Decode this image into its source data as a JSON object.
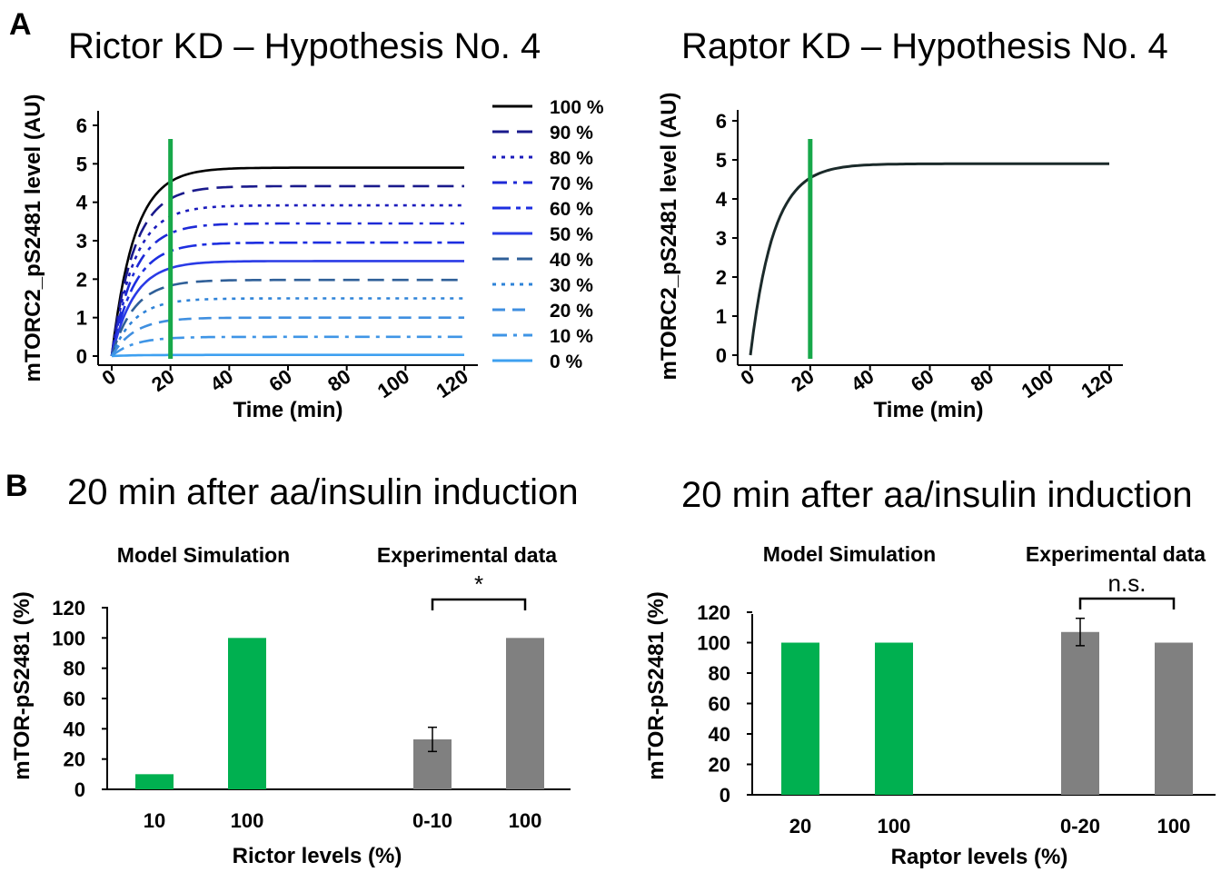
{
  "panel_labels": {
    "a": "A",
    "b": "B"
  },
  "chart_data": [
    {
      "type": "line",
      "title": "Rictor KD – Hypothesis No. 4",
      "xlabel": "Time (min)",
      "ylabel": "mTORC2_pS2481 level (AU)",
      "xticks": [
        "0",
        "20",
        "40",
        "60",
        "80",
        "100",
        "120"
      ],
      "yticks": [
        "0",
        "1",
        "2",
        "3",
        "4",
        "5",
        "6"
      ],
      "xlim": [
        0,
        120
      ],
      "ylim": [
        0,
        6
      ],
      "vline_x": 20,
      "vline_color": "#17a84a",
      "series": [
        {
          "name": "100 %",
          "plateau": 4.9,
          "color": "#000000",
          "dash": ""
        },
        {
          "name": "90 %",
          "plateau": 4.42,
          "color": "#1a1a8c",
          "dash": "18,9"
        },
        {
          "name": "80 %",
          "plateau": 3.92,
          "color": "#1c1cbc",
          "dash": "4,6"
        },
        {
          "name": "70 %",
          "plateau": 3.45,
          "color": "#1e2ad6",
          "dash": "16,7,4,7"
        },
        {
          "name": "60 %",
          "plateau": 2.95,
          "color": "#1d2ee0",
          "dash": "20,6,5,6"
        },
        {
          "name": "50 %",
          "plateau": 2.47,
          "color": "#2a3be6",
          "dash": ""
        },
        {
          "name": "40 %",
          "plateau": 1.98,
          "color": "#2f5f98",
          "dash": "18,9"
        },
        {
          "name": "30 %",
          "plateau": 1.5,
          "color": "#2f83d8",
          "dash": "4,6"
        },
        {
          "name": "20 %",
          "plateau": 1.0,
          "color": "#3f8fe0",
          "dash": "14,8"
        },
        {
          "name": "10 %",
          "plateau": 0.5,
          "color": "#3f95e6",
          "dash": "16,7,4,7"
        },
        {
          "name": "0 %",
          "plateau": 0.03,
          "color": "#3ea0f0",
          "dash": ""
        }
      ]
    },
    {
      "type": "line",
      "title": "Raptor KD – Hypothesis No. 4",
      "xlabel": "Time (min)",
      "ylabel": "mTORC2_pS2481 level (AU)",
      "xticks": [
        "0",
        "20",
        "40",
        "60",
        "80",
        "100",
        "120"
      ],
      "yticks": [
        "0",
        "1",
        "2",
        "3",
        "4",
        "5",
        "6"
      ],
      "xlim": [
        0,
        120
      ],
      "ylim": [
        0,
        6
      ],
      "vline_x": 20,
      "vline_color": "#17a84a",
      "series": [
        {
          "plateau": 4.9,
          "color": "#1b2a2a",
          "dash": ""
        }
      ]
    },
    {
      "type": "bar",
      "title": "20 min after aa/insulin induction",
      "xlabel": "Rictor levels (%)",
      "ylabel": "mTOR-pS2481 (%)",
      "group_labels": [
        "Model Simulation",
        "Experimental data"
      ],
      "yticks": [
        "0",
        "20",
        "40",
        "60",
        "80",
        "100",
        "120"
      ],
      "ylim": [
        0,
        120
      ],
      "categories": [
        "10",
        "100",
        "0-10",
        "100"
      ],
      "values": [
        10,
        100,
        33,
        100
      ],
      "errors": [
        0,
        0,
        8,
        0
      ],
      "colors": [
        "#00b050",
        "#00b050",
        "#808080",
        "#808080"
      ],
      "significance": {
        "label": "*",
        "between": [
          2,
          3
        ]
      }
    },
    {
      "type": "bar",
      "title": "20 min after aa/insulin induction",
      "xlabel": "Raptor levels (%)",
      "ylabel": "mTOR-pS2481 (%)",
      "group_labels": [
        "Model Simulation",
        "Experimental data"
      ],
      "yticks": [
        "0",
        "20",
        "40",
        "60",
        "80",
        "100",
        "120"
      ],
      "ylim": [
        0,
        120
      ],
      "categories": [
        "20",
        "100",
        "0-20",
        "100"
      ],
      "values": [
        100,
        100,
        107,
        100
      ],
      "errors": [
        0,
        0,
        9,
        0
      ],
      "colors": [
        "#00b050",
        "#00b050",
        "#808080",
        "#808080"
      ],
      "significance": {
        "label": "n.s.",
        "between": [
          2,
          3
        ]
      }
    }
  ]
}
